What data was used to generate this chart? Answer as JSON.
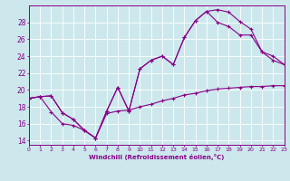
{
  "bg_color": "#cce8ec",
  "line_color": "#880088",
  "grid_color": "#ffffff",
  "xlabel": "Windchill (Refroidissement éolien,°C)",
  "xlim": [
    0,
    23
  ],
  "ylim": [
    13.5,
    30.0
  ],
  "yticks": [
    14,
    16,
    18,
    20,
    22,
    24,
    26,
    28
  ],
  "xticks": [
    0,
    1,
    2,
    3,
    4,
    5,
    6,
    7,
    8,
    9,
    10,
    11,
    12,
    13,
    14,
    15,
    16,
    17,
    18,
    19,
    20,
    21,
    22,
    23
  ],
  "series": [
    {
      "x": [
        0,
        1,
        2,
        3,
        4,
        5,
        6,
        7,
        8,
        9,
        10,
        11,
        12,
        13,
        14,
        15,
        16,
        17,
        18,
        19,
        20,
        21,
        22,
        23
      ],
      "y": [
        19.0,
        19.2,
        19.3,
        17.3,
        16.5,
        15.2,
        14.3,
        17.5,
        20.3,
        17.5,
        22.5,
        23.5,
        24.0,
        23.0,
        26.2,
        28.2,
        29.3,
        29.5,
        29.2,
        28.1,
        27.2,
        24.5,
        24.0,
        23.0
      ]
    },
    {
      "x": [
        0,
        1,
        2,
        3,
        4,
        5,
        6,
        7,
        8,
        9,
        10,
        11,
        12,
        13,
        14,
        15,
        16,
        17,
        18,
        19,
        20,
        21,
        22,
        23
      ],
      "y": [
        19.0,
        19.2,
        19.3,
        17.3,
        16.5,
        15.2,
        14.3,
        17.5,
        20.3,
        17.5,
        22.5,
        23.5,
        24.0,
        23.0,
        26.2,
        28.2,
        29.3,
        28.0,
        27.5,
        26.5,
        26.5,
        24.5,
        23.5,
        23.0
      ]
    },
    {
      "x": [
        0,
        1,
        2,
        3,
        4,
        5,
        6,
        7,
        8,
        9,
        10,
        11,
        12,
        13,
        14,
        15,
        16,
        17,
        18,
        19,
        20,
        21,
        22,
        23
      ],
      "y": [
        19.0,
        19.2,
        17.4,
        16.0,
        15.8,
        15.2,
        14.3,
        17.2,
        17.5,
        17.6,
        18.0,
        18.3,
        18.7,
        19.0,
        19.4,
        19.6,
        19.9,
        20.1,
        20.2,
        20.3,
        20.4,
        20.4,
        20.5,
        20.5
      ]
    }
  ]
}
